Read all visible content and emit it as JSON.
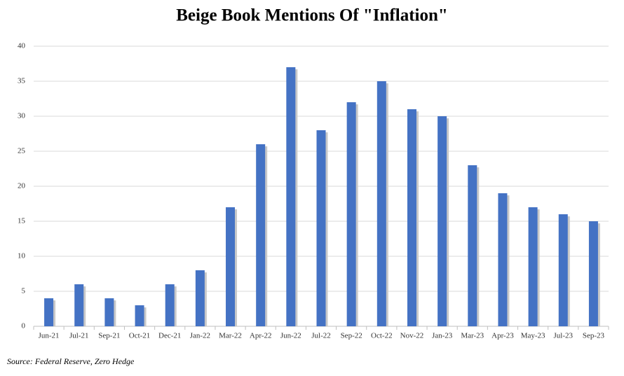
{
  "chart_data": {
    "type": "bar",
    "title": "Beige Book Mentions Of \"Inflation\"",
    "categories": [
      "Jun-21",
      "Jul-21",
      "Sep-21",
      "Oct-21",
      "Dec-21",
      "Jan-22",
      "Mar-22",
      "Apr-22",
      "Jun-22",
      "Jul-22",
      "Sep-22",
      "Oct-22",
      "Nov-22",
      "Jan-23",
      "Mar-23",
      "Apr-23",
      "May-23",
      "Jul-23",
      "Sep-23"
    ],
    "values": [
      4,
      6,
      4,
      3,
      6,
      8,
      17,
      26,
      37,
      28,
      32,
      35,
      31,
      30,
      23,
      19,
      17,
      16,
      15
    ],
    "color": "#4472c4",
    "ylim": [
      0,
      40
    ],
    "yticks": [
      0,
      5,
      10,
      15,
      20,
      25,
      30,
      35,
      40
    ],
    "grid": true,
    "source": "Source: Federal Reserve, Zero Hedge"
  }
}
